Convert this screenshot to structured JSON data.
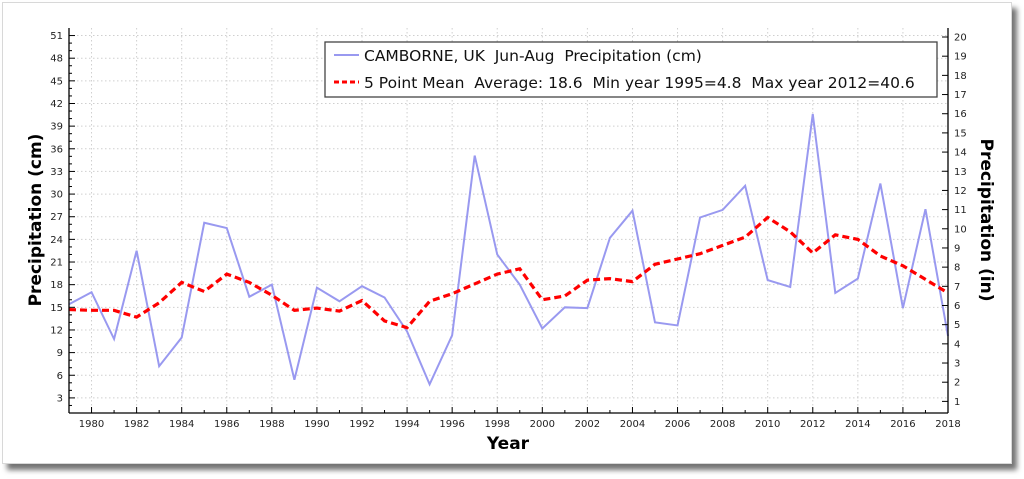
{
  "chart_data": {
    "type": "line",
    "title": "",
    "xlabel": "Year",
    "ylabel": "Precipitation (cm)",
    "ylabel_right": "Precipitation (in)",
    "xlim": [
      1979,
      2018
    ],
    "ylim": [
      1,
      52
    ],
    "ylim_right_in": [
      0.394,
      20.47
    ],
    "x_ticks": [
      "1980",
      "1982",
      "1984",
      "1986",
      "1988",
      "1990",
      "1992",
      "1994",
      "1996",
      "1998",
      "2000",
      "2002",
      "2004",
      "2006",
      "2008",
      "2010",
      "2012",
      "2014",
      "2016",
      "2018"
    ],
    "y_ticks": [
      "3",
      "6",
      "9",
      "12",
      "15",
      "18",
      "21",
      "24",
      "27",
      "30",
      "33",
      "36",
      "39",
      "42",
      "45",
      "48",
      "51"
    ],
    "y_ticks_right": [
      "1",
      "2",
      "3",
      "4",
      "5",
      "6",
      "7",
      "8",
      "9",
      "10",
      "11",
      "12",
      "13",
      "14",
      "15",
      "16",
      "17",
      "18",
      "19",
      "20"
    ],
    "grid": true,
    "legend_placement": "top-right",
    "x": [
      1979,
      1980,
      1981,
      1982,
      1983,
      1984,
      1985,
      1986,
      1987,
      1988,
      1989,
      1990,
      1991,
      1992,
      1993,
      1994,
      1995,
      1996,
      1997,
      1998,
      1999,
      2000,
      2001,
      2002,
      2003,
      2004,
      2005,
      2006,
      2007,
      2008,
      2009,
      2010,
      2011,
      2012,
      2013,
      2014,
      2015,
      2016,
      2017,
      2018
    ],
    "series": [
      {
        "name": "CAMBORNE, UK  Jun-Aug  Precipitation (cm)",
        "style": "solid",
        "color": "#9999f0",
        "values": [
          15.4,
          17.0,
          10.8,
          22.5,
          7.2,
          11.0,
          26.2,
          25.5,
          16.4,
          18.0,
          5.4,
          17.6,
          15.8,
          17.8,
          16.3,
          11.8,
          4.8,
          11.3,
          35.1,
          22.0,
          18.0,
          12.2,
          15.0,
          14.9,
          24.2,
          27.8,
          13.0,
          12.6,
          26.9,
          27.9,
          31.1,
          18.6,
          17.7,
          40.6,
          16.9,
          18.8,
          31.4,
          14.9,
          28.0,
          11.2
        ]
      },
      {
        "name": "5 Point Mean  Average: 18.6  Min year 1995=4.8  Max year 2012=40.6",
        "style": "dashed",
        "color": "#ff0000",
        "values": [
          14.7,
          14.6,
          14.6,
          13.7,
          15.6,
          18.3,
          17.1,
          19.4,
          18.3,
          16.6,
          14.6,
          14.9,
          14.5,
          15.9,
          13.2,
          12.3,
          15.8,
          16.8,
          18.1,
          19.4,
          20.1,
          16.0,
          16.5,
          18.6,
          18.8,
          18.4,
          20.7,
          21.4,
          22.1,
          23.2,
          24.3,
          26.9,
          25.0,
          22.2,
          24.6,
          24.0,
          21.8,
          20.5,
          18.7,
          16.9
        ]
      }
    ],
    "annotations": {
      "average": 18.6,
      "min_year": 1995,
      "min_value": 4.8,
      "max_year": 2012,
      "max_value": 40.6
    }
  }
}
